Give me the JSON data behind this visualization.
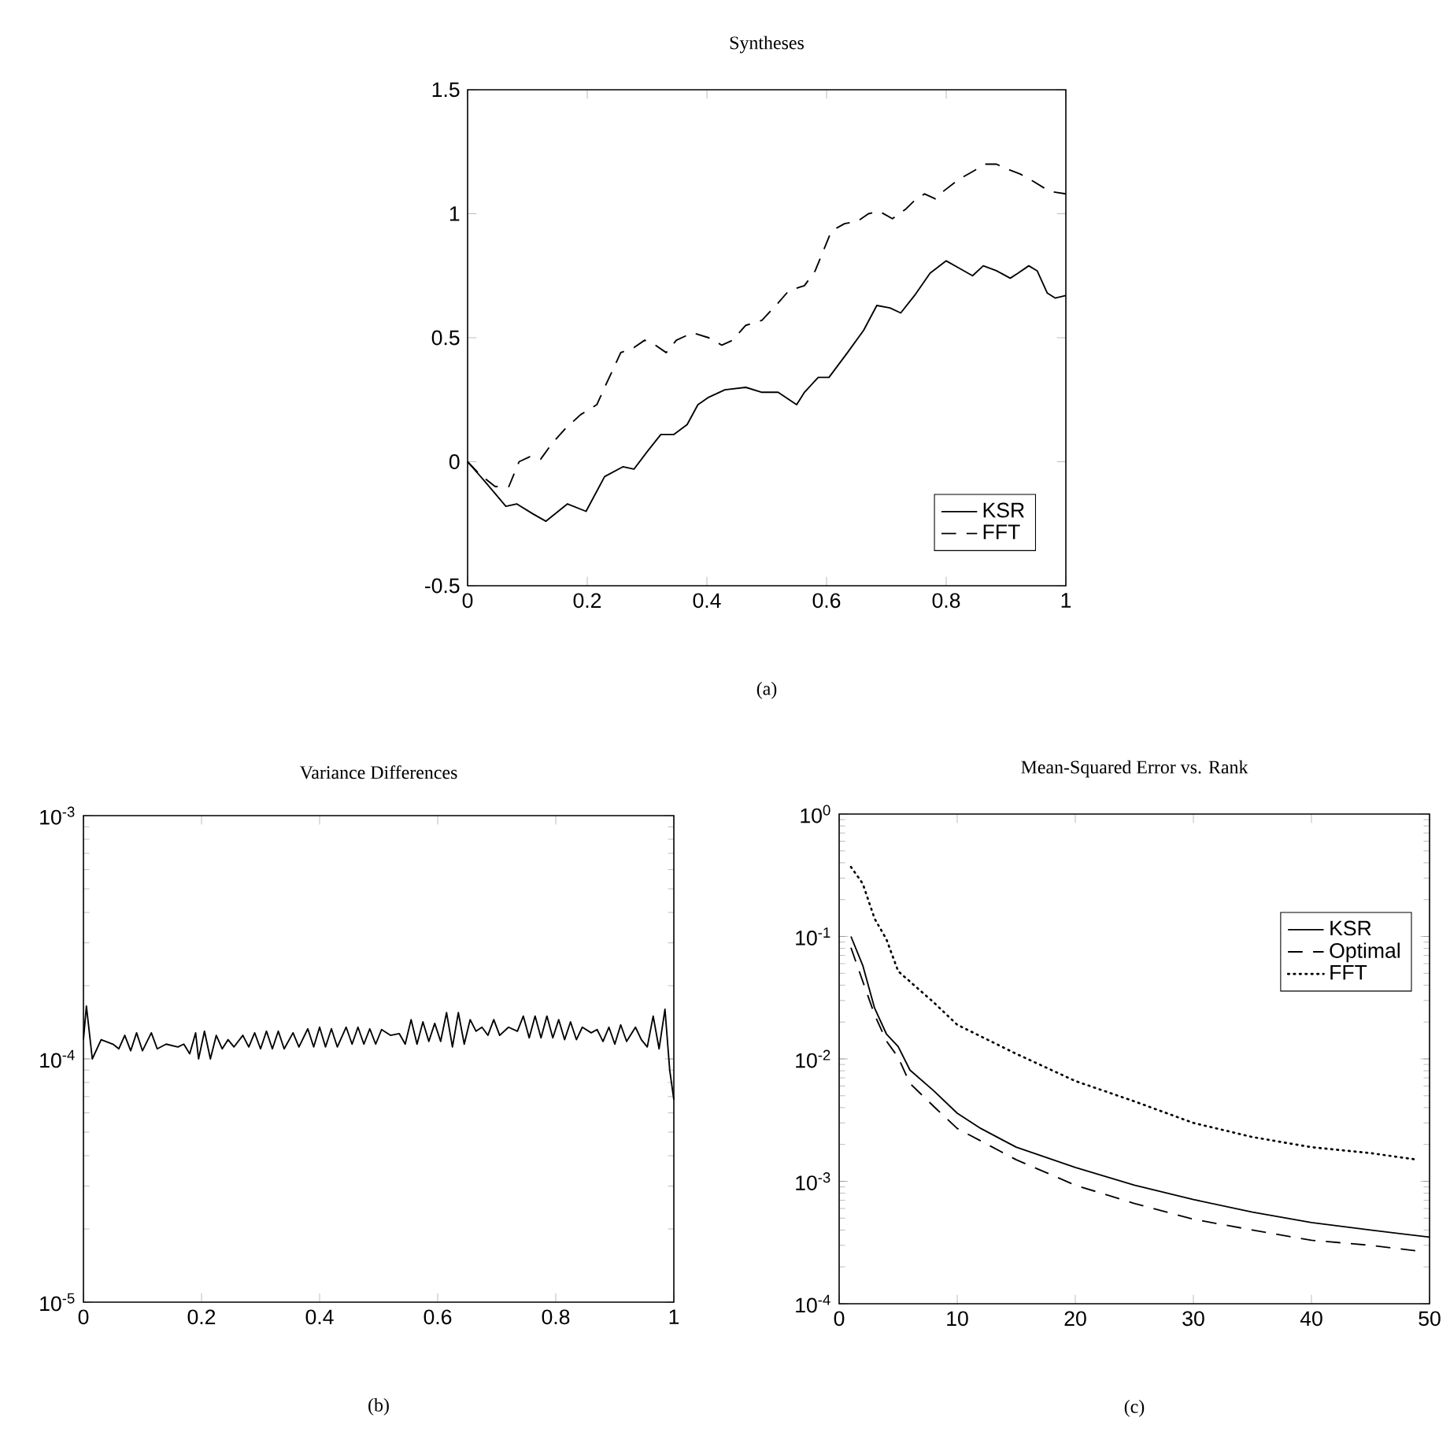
{
  "chart_data": [
    {
      "type": "line",
      "title": "Syntheses",
      "annotations": [
        "(a)"
      ],
      "legend": "bottom right",
      "xlim": [
        0,
        1
      ],
      "ylim": [
        -0.5,
        1.5
      ],
      "xticks": [
        0,
        0.2,
        0.4,
        0.6,
        0.8,
        1
      ],
      "yticks": [
        -0.5,
        0,
        0.5,
        1,
        1.5
      ],
      "series": [
        {
          "name": "KSR",
          "color": "#000000",
          "line_style": "solid",
          "x": [
            0,
            0.029,
            0.064,
            0.082,
            0.109,
            0.131,
            0.167,
            0.198,
            0.229,
            0.26,
            0.278,
            0.3,
            0.323,
            0.345,
            0.367,
            0.385,
            0.403,
            0.43,
            0.465,
            0.492,
            0.519,
            0.55,
            0.563,
            0.586,
            0.604,
            0.635,
            0.662,
            0.684,
            0.706,
            0.724,
            0.747,
            0.773,
            0.8,
            0.822,
            0.844,
            0.862,
            0.884,
            0.907,
            0.92,
            0.938,
            0.952,
            0.969,
            0.982,
            1.0
          ],
          "values": [
            0,
            -0.08,
            -0.18,
            -0.17,
            -0.21,
            -0.24,
            -0.17,
            -0.2,
            -0.06,
            -0.02,
            -0.03,
            0.04,
            0.11,
            0.11,
            0.15,
            0.23,
            0.26,
            0.29,
            0.3,
            0.28,
            0.28,
            0.23,
            0.28,
            0.34,
            0.34,
            0.44,
            0.53,
            0.63,
            0.62,
            0.6,
            0.67,
            0.76,
            0.81,
            0.78,
            0.75,
            0.79,
            0.77,
            0.74,
            0.76,
            0.79,
            0.77,
            0.68,
            0.66,
            0.67
          ]
        },
        {
          "name": "FFT",
          "color": "#000000",
          "line_style": "dashed",
          "x": [
            0,
            0.02,
            0.046,
            0.069,
            0.086,
            0.104,
            0.122,
            0.14,
            0.162,
            0.189,
            0.216,
            0.233,
            0.256,
            0.278,
            0.296,
            0.314,
            0.332,
            0.349,
            0.376,
            0.403,
            0.425,
            0.443,
            0.465,
            0.492,
            0.519,
            0.537,
            0.563,
            0.581,
            0.608,
            0.63,
            0.652,
            0.67,
            0.688,
            0.71,
            0.733,
            0.75,
            0.764,
            0.782,
            0.795,
            0.822,
            0.844,
            0.866,
            0.884,
            0.902,
            0.924,
            0.946,
            0.973,
            1.0
          ],
          "values": [
            0,
            -0.05,
            -0.1,
            -0.1,
            0,
            0.02,
            0.01,
            0.07,
            0.13,
            0.19,
            0.23,
            0.32,
            0.44,
            0.46,
            0.49,
            0.47,
            0.44,
            0.49,
            0.52,
            0.5,
            0.47,
            0.49,
            0.55,
            0.57,
            0.64,
            0.69,
            0.71,
            0.77,
            0.93,
            0.96,
            0.97,
            1.0,
            1.01,
            0.98,
            1.02,
            1.06,
            1.08,
            1.06,
            1.09,
            1.14,
            1.17,
            1.2,
            1.2,
            1.18,
            1.16,
            1.13,
            1.09,
            1.08
          ]
        }
      ]
    },
    {
      "type": "line",
      "title": "Variance Differences",
      "annotations": [
        "(b)"
      ],
      "log": "y",
      "xlim": [
        0,
        1
      ],
      "ylim": [
        1e-05,
        0.001
      ],
      "xticks": [
        0,
        0.2,
        0.4,
        0.6,
        0.8,
        1
      ],
      "yticks": [
        {
          "value": 1e-05,
          "label": "10$^{-5}$"
        },
        {
          "value": 0.0001,
          "label": "10$^{-4}$"
        },
        {
          "value": 0.001,
          "label": "10$^{-3}$"
        }
      ],
      "series": [
        {
          "color": "#000000",
          "line_style": "solid",
          "x": [
            0,
            0.005,
            0.015,
            0.03,
            0.05,
            0.06,
            0.07,
            0.08,
            0.09,
            0.1,
            0.115,
            0.125,
            0.14,
            0.16,
            0.17,
            0.18,
            0.19,
            0.195,
            0.205,
            0.215,
            0.225,
            0.235,
            0.245,
            0.255,
            0.27,
            0.28,
            0.29,
            0.3,
            0.31,
            0.32,
            0.33,
            0.34,
            0.355,
            0.365,
            0.38,
            0.39,
            0.4,
            0.41,
            0.42,
            0.43,
            0.445,
            0.455,
            0.465,
            0.475,
            0.485,
            0.495,
            0.505,
            0.52,
            0.535,
            0.545,
            0.555,
            0.565,
            0.575,
            0.585,
            0.595,
            0.605,
            0.615,
            0.625,
            0.635,
            0.645,
            0.655,
            0.665,
            0.675,
            0.685,
            0.695,
            0.705,
            0.72,
            0.735,
            0.745,
            0.755,
            0.765,
            0.775,
            0.785,
            0.795,
            0.805,
            0.815,
            0.825,
            0.835,
            0.845,
            0.86,
            0.87,
            0.88,
            0.89,
            0.9,
            0.91,
            0.92,
            0.935,
            0.945,
            0.955,
            0.965,
            0.975,
            0.985,
            0.993,
            1.0
          ],
          "values": [
            0.00012,
            0.000165,
            0.0001,
            0.00012,
            0.000115,
            0.00011,
            0.000125,
            0.000108,
            0.000128,
            0.000108,
            0.000128,
            0.00011,
            0.000115,
            0.000112,
            0.000115,
            0.000105,
            0.000128,
            0.0001,
            0.00013,
            0.0001,
            0.000125,
            0.00011,
            0.00012,
            0.000112,
            0.000125,
            0.000112,
            0.000128,
            0.00011,
            0.00013,
            0.00011,
            0.00013,
            0.00011,
            0.000128,
            0.000112,
            0.000133,
            0.000112,
            0.000135,
            0.000112,
            0.000133,
            0.000112,
            0.000135,
            0.000115,
            0.000135,
            0.000115,
            0.000133,
            0.000115,
            0.000132,
            0.000125,
            0.000127,
            0.000115,
            0.000145,
            0.000115,
            0.000142,
            0.000118,
            0.00014,
            0.000118,
            0.000155,
            0.000112,
            0.000155,
            0.000115,
            0.000145,
            0.00013,
            0.000135,
            0.000125,
            0.000145,
            0.000125,
            0.000135,
            0.00013,
            0.00015,
            0.000122,
            0.00015,
            0.000122,
            0.00015,
            0.000122,
            0.000145,
            0.00012,
            0.000142,
            0.00012,
            0.000135,
            0.000128,
            0.000132,
            0.000118,
            0.000135,
            0.000115,
            0.000138,
            0.000118,
            0.000135,
            0.00012,
            0.000112,
            0.00015,
            0.00011,
            0.00016,
            9e-05,
            6.8e-05
          ]
        }
      ]
    },
    {
      "type": "line",
      "title": "Mean-Squared Error vs. Rank",
      "annotations": [
        "(c)"
      ],
      "log": "y",
      "legend": "top right",
      "xlim": [
        0,
        50
      ],
      "ylim": [
        0.0001,
        1
      ],
      "xticks": [
        0,
        10,
        20,
        30,
        40,
        50
      ],
      "yticks": [
        {
          "value": 0.0001,
          "label": "10$^{-4}$"
        },
        {
          "value": 0.001,
          "label": "10$^{-3}$"
        },
        {
          "value": 0.01,
          "label": "10$^{-2}$"
        },
        {
          "value": 0.1,
          "label": "10$^{-1}$"
        },
        {
          "value": 1,
          "label": "10$^{0}$"
        }
      ],
      "series": [
        {
          "name": "KSR",
          "color": "#000000",
          "line_style": "solid",
          "x": [
            1,
            2,
            3,
            4,
            5,
            6,
            8,
            10,
            12,
            15,
            20,
            25,
            30,
            35,
            40,
            45,
            50
          ],
          "values": [
            0.1,
            0.058,
            0.026,
            0.016,
            0.0126,
            0.0081,
            0.0055,
            0.0036,
            0.0027,
            0.0019,
            0.0013,
            0.00093,
            0.00071,
            0.00056,
            0.00046,
            0.0004,
            0.00035
          ]
        },
        {
          "name": "Optimal",
          "color": "#000000",
          "line_style": "dashed",
          "x": [
            1,
            2,
            3,
            4,
            5,
            6,
            8,
            10,
            15,
            20,
            25,
            30,
            35,
            40,
            45,
            49
          ],
          "values": [
            0.081,
            0.043,
            0.023,
            0.014,
            0.0103,
            0.0063,
            0.0041,
            0.0027,
            0.0015,
            0.00093,
            0.00066,
            0.00049,
            0.0004,
            0.00033,
            0.0003,
            0.00027
          ]
        },
        {
          "name": "FFT",
          "color": "#000000",
          "line_style": "dotted",
          "x": [
            1,
            2,
            3,
            4,
            5,
            8,
            10,
            15,
            20,
            25,
            30,
            35,
            40,
            45,
            49
          ],
          "values": [
            0.37,
            0.27,
            0.14,
            0.095,
            0.052,
            0.029,
            0.019,
            0.011,
            0.0066,
            0.0045,
            0.003,
            0.0023,
            0.0019,
            0.0017,
            0.0015
          ]
        }
      ]
    }
  ]
}
